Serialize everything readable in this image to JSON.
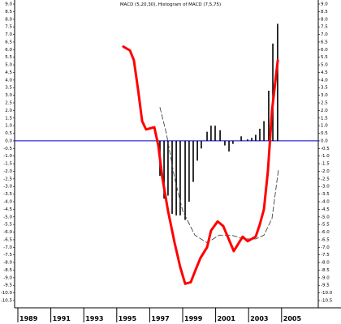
{
  "chart_data": {
    "type": "line",
    "title": "MACD (5,20,30), Histogram of MACD (7,5,75)",
    "xlim": [
      1988.8,
      2007.2
    ],
    "xticks": [
      1989,
      1991,
      1993,
      1995,
      1997,
      1999,
      2001,
      2003,
      2005
    ],
    "ylim": [
      -10.5,
      9.0
    ],
    "yticks": [
      {
        "value": 9,
        "label": "9.0"
      },
      8.5,
      {
        "value": 8,
        "label": "8.0"
      },
      7.5,
      {
        "value": 7,
        "label": "7.0"
      },
      6.5,
      {
        "value": 6,
        "label": "6.0"
      },
      5.5,
      {
        "value": 5,
        "label": "5.0"
      },
      4.5,
      {
        "value": 4,
        "label": "4.0"
      },
      3.5,
      {
        "value": 3,
        "label": "3.0"
      },
      2.5,
      {
        "value": 2,
        "label": "2.0"
      },
      1.5,
      {
        "value": 1,
        "label": "1.0"
      },
      0.5,
      {
        "value": 0,
        "label": "0.0"
      },
      -0.5,
      {
        "value": -1,
        "label": "-1.0"
      },
      -1.5,
      {
        "value": -2,
        "label": "-2.0"
      },
      -2.5,
      {
        "value": -3,
        "label": "-3.0"
      },
      -3.5,
      {
        "value": -4,
        "label": "-4.0"
      },
      -4.5,
      {
        "value": -5,
        "label": "-5.0"
      },
      -5.5,
      {
        "value": -6,
        "label": "-6.0"
      },
      -6.5,
      {
        "value": -7,
        "label": "-7.0"
      },
      -7.5,
      {
        "value": -8,
        "label": "-8.0"
      },
      -8.5,
      {
        "value": -9,
        "label": "-9.0"
      },
      -9.5,
      {
        "value": -10,
        "label": "-10.0"
      },
      -10.5
    ],
    "zero_line_color": "#0000cc",
    "series": [
      {
        "type": "bar",
        "color": "#000000",
        "x": [
          1997.62,
          1997.87,
          1998.11,
          1998.36,
          1998.61,
          1998.85,
          1999.15,
          1999.39,
          1999.64,
          1999.89,
          2000.13,
          2000.48,
          2000.72,
          2000.97,
          2001.27,
          2001.56,
          2001.81,
          2002.05,
          2002.55,
          2002.94,
          2003.19,
          2003.43,
          2003.68,
          2003.93,
          2004.22,
          2004.47,
          2004.76
        ],
        "values": [
          -2.3,
          -3.8,
          -3.6,
          -4.8,
          -4.9,
          -4.9,
          -5.2,
          -4.0,
          -2.7,
          -1.3,
          -0.5,
          0.6,
          1.0,
          1.0,
          0.7,
          -0.3,
          -0.7,
          -0.2,
          0.3,
          0.1,
          0.2,
          0.4,
          0.8,
          1.3,
          3.3,
          6.4,
          7.7
        ]
      },
      {
        "type": "line",
        "color": "#444444",
        "dash": true,
        "x": [
          1997.62,
          1998.01,
          1998.51,
          1999.0,
          1999.74,
          2000.48,
          2001.22,
          2001.96,
          2002.69,
          2003.43,
          2003.93,
          2004.42,
          2004.81
        ],
        "values": [
          2.2,
          0.5,
          -2.45,
          -4.6,
          -6.2,
          -6.7,
          -6.2,
          -6.2,
          -6.45,
          -6.45,
          -6.2,
          -5.1,
          -1.9
        ]
      },
      {
        "type": "line",
        "color": "#ff0000",
        "dash": false,
        "x": [
          1995.4,
          1995.8,
          1996.04,
          1996.29,
          1996.54,
          1996.78,
          1997.28,
          1997.52,
          1997.77,
          1998.11,
          1998.51,
          1998.85,
          1999.15,
          1999.49,
          1999.74,
          2000.08,
          2000.48,
          2000.72,
          2001.12,
          2001.46,
          2002.1,
          2002.64,
          2002.94,
          2003.43,
          2003.68,
          2003.93,
          2004.17,
          2004.42,
          2004.77
        ],
        "values": [
          6.2,
          5.95,
          5.3,
          3.4,
          1.3,
          0.75,
          0.9,
          -0.3,
          -2.45,
          -4.6,
          -6.7,
          -8.3,
          -9.4,
          -9.3,
          -8.6,
          -7.7,
          -7.0,
          -5.9,
          -5.3,
          -5.6,
          -7.25,
          -6.3,
          -6.6,
          -6.3,
          -5.5,
          -4.5,
          -2.0,
          2.0,
          5.3
        ]
      }
    ]
  }
}
